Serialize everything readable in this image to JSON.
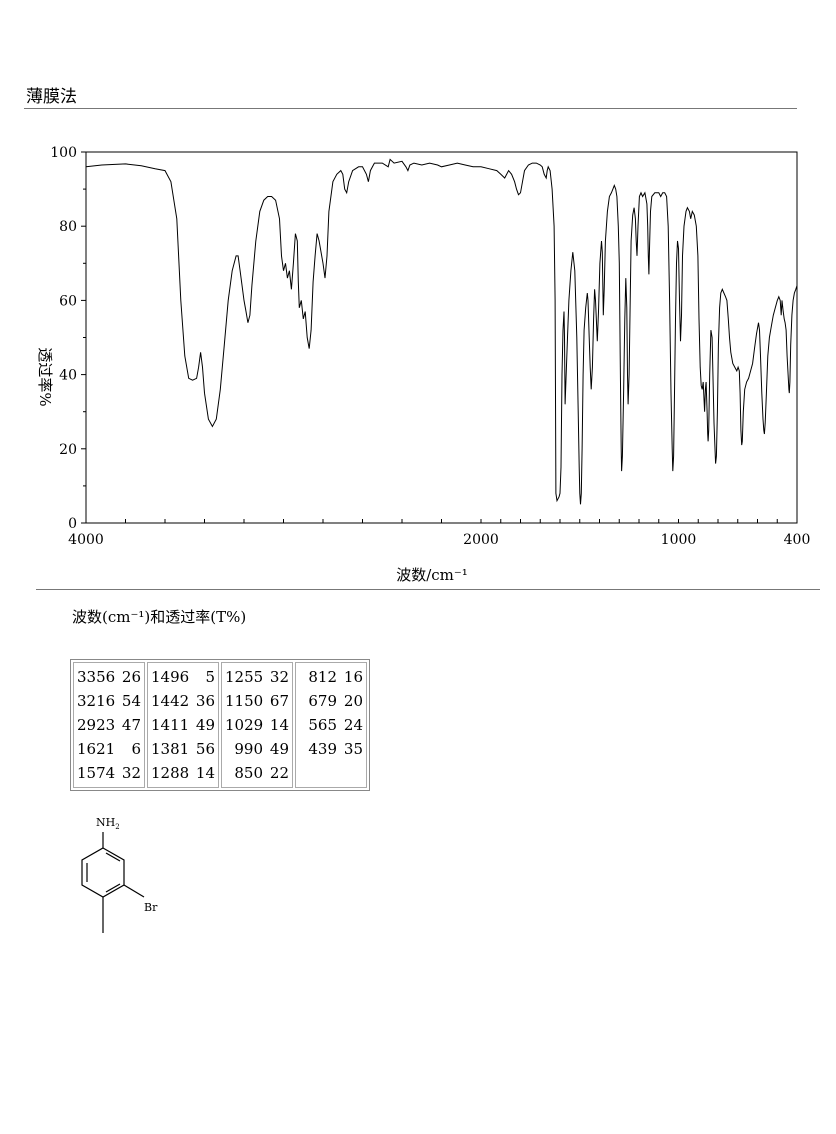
{
  "header": {
    "method": "薄膜法"
  },
  "chart_data": {
    "type": "line",
    "xlabel": "波数/cm⁻¹",
    "ylabel": "透过率%",
    "xlim": [
      4000,
      400
    ],
    "ylim": [
      0,
      100
    ],
    "x_ticks": [
      4000,
      2000,
      1000,
      400
    ],
    "y_ticks": [
      0,
      20,
      40,
      60,
      80,
      100
    ],
    "grid": false,
    "series": [
      {
        "points": [
          [
            4000,
            96
          ],
          [
            3920,
            96.5
          ],
          [
            3800,
            96.8
          ],
          [
            3720,
            96.3
          ],
          [
            3650,
            95.5
          ],
          [
            3600,
            95
          ],
          [
            3570,
            92
          ],
          [
            3540,
            82
          ],
          [
            3520,
            60
          ],
          [
            3500,
            45
          ],
          [
            3480,
            39
          ],
          [
            3460,
            38.5
          ],
          [
            3440,
            39
          ],
          [
            3430,
            42
          ],
          [
            3420,
            46
          ],
          [
            3410,
            42
          ],
          [
            3400,
            35
          ],
          [
            3380,
            28
          ],
          [
            3360,
            26
          ],
          [
            3340,
            28
          ],
          [
            3320,
            36
          ],
          [
            3300,
            48
          ],
          [
            3280,
            60
          ],
          [
            3260,
            68
          ],
          [
            3240,
            72
          ],
          [
            3230,
            72
          ],
          [
            3220,
            68
          ],
          [
            3200,
            60
          ],
          [
            3190,
            57
          ],
          [
            3180,
            54
          ],
          [
            3170,
            56
          ],
          [
            3160,
            64
          ],
          [
            3140,
            76
          ],
          [
            3120,
            84
          ],
          [
            3100,
            87
          ],
          [
            3080,
            88
          ],
          [
            3060,
            88
          ],
          [
            3040,
            87
          ],
          [
            3020,
            82
          ],
          [
            3010,
            72
          ],
          [
            3000,
            68
          ],
          [
            2990,
            70
          ],
          [
            2980,
            66
          ],
          [
            2970,
            68
          ],
          [
            2960,
            63
          ],
          [
            2950,
            70
          ],
          [
            2940,
            78
          ],
          [
            2930,
            76
          ],
          [
            2925,
            65
          ],
          [
            2920,
            58
          ],
          [
            2910,
            60
          ],
          [
            2900,
            55
          ],
          [
            2890,
            57
          ],
          [
            2880,
            50
          ],
          [
            2870,
            47
          ],
          [
            2860,
            52
          ],
          [
            2850,
            65
          ],
          [
            2840,
            72
          ],
          [
            2830,
            78
          ],
          [
            2820,
            76
          ],
          [
            2800,
            70
          ],
          [
            2790,
            66
          ],
          [
            2780,
            72
          ],
          [
            2770,
            84
          ],
          [
            2750,
            92
          ],
          [
            2730,
            94
          ],
          [
            2710,
            95
          ],
          [
            2700,
            94
          ],
          [
            2690,
            90
          ],
          [
            2680,
            89
          ],
          [
            2670,
            92
          ],
          [
            2650,
            95
          ],
          [
            2620,
            96
          ],
          [
            2600,
            96
          ],
          [
            2580,
            94
          ],
          [
            2570,
            92
          ],
          [
            2560,
            95
          ],
          [
            2540,
            97
          ],
          [
            2500,
            97
          ],
          [
            2470,
            96
          ],
          [
            2460,
            98
          ],
          [
            2440,
            97
          ],
          [
            2400,
            97.5
          ],
          [
            2380,
            96
          ],
          [
            2370,
            95
          ],
          [
            2360,
            96.5
          ],
          [
            2340,
            97
          ],
          [
            2300,
            96.5
          ],
          [
            2260,
            97
          ],
          [
            2220,
            96.5
          ],
          [
            2200,
            96
          ],
          [
            2160,
            96.5
          ],
          [
            2120,
            97
          ],
          [
            2080,
            96.5
          ],
          [
            2040,
            96
          ],
          [
            2000,
            96
          ],
          [
            1960,
            95.5
          ],
          [
            1920,
            95
          ],
          [
            1900,
            94
          ],
          [
            1880,
            93
          ],
          [
            1860,
            95
          ],
          [
            1845,
            94
          ],
          [
            1830,
            92
          ],
          [
            1820,
            90
          ],
          [
            1810,
            88.5
          ],
          [
            1800,
            89
          ],
          [
            1790,
            92
          ],
          [
            1780,
            95
          ],
          [
            1760,
            96.5
          ],
          [
            1740,
            97
          ],
          [
            1720,
            97
          ],
          [
            1700,
            96.5
          ],
          [
            1690,
            96
          ],
          [
            1680,
            94
          ],
          [
            1670,
            93
          ],
          [
            1665,
            95
          ],
          [
            1660,
            96
          ],
          [
            1650,
            95
          ],
          [
            1640,
            90
          ],
          [
            1630,
            80
          ],
          [
            1625,
            60
          ],
          [
            1621,
            8
          ],
          [
            1615,
            6
          ],
          [
            1605,
            7
          ],
          [
            1600,
            8
          ],
          [
            1595,
            15
          ],
          [
            1590,
            40
          ],
          [
            1585,
            52
          ],
          [
            1580,
            57
          ],
          [
            1577,
            50
          ],
          [
            1574,
            32
          ],
          [
            1570,
            38
          ],
          [
            1562,
            50
          ],
          [
            1555,
            60
          ],
          [
            1545,
            68
          ],
          [
            1535,
            73
          ],
          [
            1525,
            68
          ],
          [
            1515,
            50
          ],
          [
            1508,
            30
          ],
          [
            1503,
            15
          ],
          [
            1500,
            8
          ],
          [
            1496,
            5
          ],
          [
            1492,
            8
          ],
          [
            1488,
            20
          ],
          [
            1483,
            40
          ],
          [
            1478,
            52
          ],
          [
            1470,
            58
          ],
          [
            1462,
            62
          ],
          [
            1458,
            60
          ],
          [
            1452,
            50
          ],
          [
            1447,
            42
          ],
          [
            1442,
            36
          ],
          [
            1436,
            42
          ],
          [
            1430,
            55
          ],
          [
            1425,
            63
          ],
          [
            1420,
            60
          ],
          [
            1411,
            49
          ],
          [
            1405,
            57
          ],
          [
            1398,
            70
          ],
          [
            1390,
            76
          ],
          [
            1386,
            73
          ],
          [
            1381,
            56
          ],
          [
            1376,
            63
          ],
          [
            1370,
            76
          ],
          [
            1360,
            84
          ],
          [
            1350,
            88
          ],
          [
            1340,
            89
          ],
          [
            1332,
            90
          ],
          [
            1325,
            91
          ],
          [
            1318,
            90
          ],
          [
            1312,
            88
          ],
          [
            1305,
            80
          ],
          [
            1300,
            70
          ],
          [
            1295,
            45
          ],
          [
            1290,
            20
          ],
          [
            1288,
            14
          ],
          [
            1284,
            18
          ],
          [
            1278,
            35
          ],
          [
            1272,
            55
          ],
          [
            1267,
            66
          ],
          [
            1262,
            58
          ],
          [
            1258,
            40
          ],
          [
            1255,
            32
          ],
          [
            1250,
            40
          ],
          [
            1245,
            58
          ],
          [
            1240,
            76
          ],
          [
            1232,
            83
          ],
          [
            1225,
            85
          ],
          [
            1218,
            82
          ],
          [
            1214,
            76
          ],
          [
            1210,
            72
          ],
          [
            1205,
            80
          ],
          [
            1198,
            88
          ],
          [
            1190,
            89
          ],
          [
            1182,
            88
          ],
          [
            1170,
            89
          ],
          [
            1160,
            86
          ],
          [
            1156,
            80
          ],
          [
            1153,
            72
          ],
          [
            1150,
            67
          ],
          [
            1147,
            74
          ],
          [
            1142,
            84
          ],
          [
            1135,
            88
          ],
          [
            1120,
            89
          ],
          [
            1100,
            89
          ],
          [
            1090,
            88
          ],
          [
            1080,
            89
          ],
          [
            1070,
            89
          ],
          [
            1060,
            88
          ],
          [
            1052,
            80
          ],
          [
            1045,
            60
          ],
          [
            1038,
            35
          ],
          [
            1032,
            20
          ],
          [
            1029,
            14
          ],
          [
            1025,
            18
          ],
          [
            1020,
            35
          ],
          [
            1015,
            55
          ],
          [
            1010,
            70
          ],
          [
            1005,
            76
          ],
          [
            1000,
            74
          ],
          [
            995,
            60
          ],
          [
            990,
            49
          ],
          [
            985,
            56
          ],
          [
            980,
            72
          ],
          [
            972,
            80
          ],
          [
            962,
            84
          ],
          [
            955,
            85
          ],
          [
            945,
            84
          ],
          [
            938,
            82
          ],
          [
            930,
            84
          ],
          [
            920,
            83
          ],
          [
            910,
            80
          ],
          [
            902,
            72
          ],
          [
            896,
            55
          ],
          [
            890,
            42
          ],
          [
            885,
            37
          ],
          [
            880,
            36
          ],
          [
            875,
            38
          ],
          [
            868,
            30
          ],
          [
            864,
            36
          ],
          [
            860,
            38
          ],
          [
            855,
            30
          ],
          [
            852,
            24
          ],
          [
            850,
            22
          ],
          [
            847,
            25
          ],
          [
            842,
            40
          ],
          [
            836,
            52
          ],
          [
            830,
            50
          ],
          [
            825,
            38
          ],
          [
            820,
            27
          ],
          [
            815,
            20
          ],
          [
            812,
            16
          ],
          [
            808,
            18
          ],
          [
            803,
            30
          ],
          [
            798,
            48
          ],
          [
            792,
            58
          ],
          [
            786,
            62
          ],
          [
            778,
            63
          ],
          [
            770,
            62
          ],
          [
            762,
            61
          ],
          [
            755,
            60
          ],
          [
            748,
            55
          ],
          [
            742,
            50
          ],
          [
            735,
            46
          ],
          [
            725,
            43
          ],
          [
            715,
            42
          ],
          [
            705,
            41
          ],
          [
            698,
            42
          ],
          [
            692,
            41
          ],
          [
            688,
            35
          ],
          [
            684,
            25
          ],
          [
            680,
            21
          ],
          [
            677,
            22
          ],
          [
            672,
            30
          ],
          [
            665,
            36
          ],
          [
            655,
            38
          ],
          [
            645,
            39
          ],
          [
            635,
            41
          ],
          [
            625,
            43
          ],
          [
            615,
            47
          ],
          [
            605,
            51
          ],
          [
            595,
            54
          ],
          [
            590,
            52
          ],
          [
            585,
            45
          ],
          [
            578,
            35
          ],
          [
            572,
            28
          ],
          [
            568,
            25
          ],
          [
            565,
            24
          ],
          [
            561,
            27
          ],
          [
            555,
            35
          ],
          [
            548,
            45
          ],
          [
            540,
            50
          ],
          [
            530,
            53
          ],
          [
            520,
            56
          ],
          [
            510,
            58
          ],
          [
            500,
            60
          ],
          [
            492,
            61
          ],
          [
            485,
            60
          ],
          [
            480,
            56
          ],
          [
            476,
            60
          ],
          [
            470,
            57
          ],
          [
            465,
            55
          ],
          [
            460,
            54
          ],
          [
            455,
            52
          ],
          [
            450,
            45
          ],
          [
            445,
            40
          ],
          [
            441,
            36
          ],
          [
            439,
            35
          ],
          [
            436,
            38
          ],
          [
            432,
            48
          ],
          [
            426,
            56
          ],
          [
            420,
            60
          ],
          [
            413,
            62
          ],
          [
            406,
            63
          ],
          [
            400,
            64
          ]
        ]
      }
    ]
  },
  "table": {
    "caption": "波数(cm⁻¹)和透过率(T%)",
    "columns": [
      [
        [
          "3356",
          "26"
        ],
        [
          "3216",
          "54"
        ],
        [
          "2923",
          "47"
        ],
        [
          "1621",
          "6"
        ],
        [
          "1574",
          "32"
        ]
      ],
      [
        [
          "1496",
          "5"
        ],
        [
          "1442",
          "36"
        ],
        [
          "1411",
          "49"
        ],
        [
          "1381",
          "56"
        ],
        [
          "1288",
          "14"
        ]
      ],
      [
        [
          "1255",
          "32"
        ],
        [
          "1150",
          "67"
        ],
        [
          "1029",
          "14"
        ],
        [
          "990",
          "49"
        ],
        [
          "850",
          "22"
        ]
      ],
      [
        [
          "812",
          "16"
        ],
        [
          "679",
          "20"
        ],
        [
          "565",
          "24"
        ],
        [
          "439",
          "35"
        ]
      ]
    ]
  },
  "structure": {
    "nh2_label": "NH",
    "nh2_sub": "2",
    "br_label": "Br"
  }
}
